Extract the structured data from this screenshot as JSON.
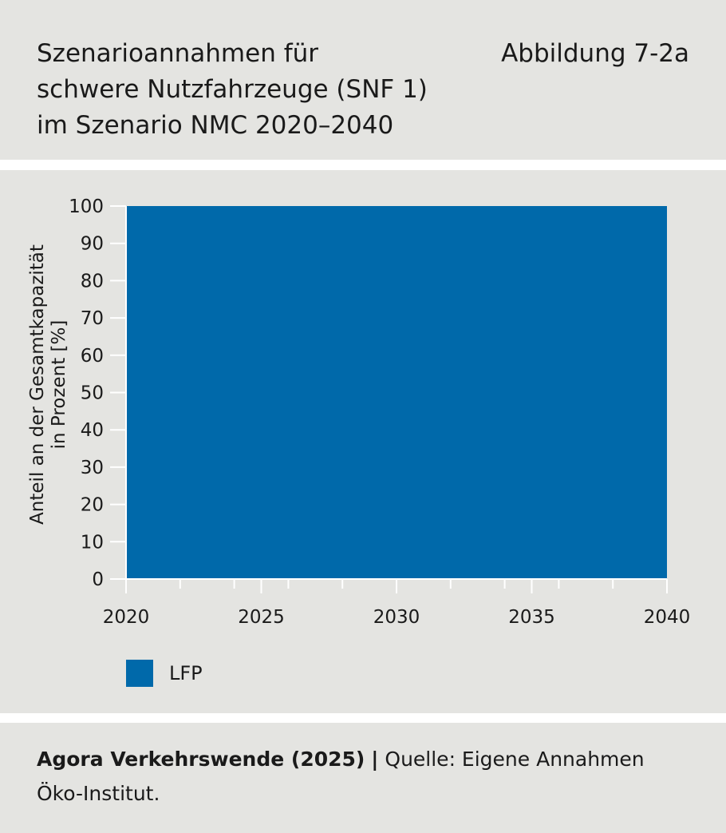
{
  "header": {
    "title_lines": [
      "Szenarioannahmen für",
      "schwere Nutzfahrzeuge (SNF 1)",
      "im Szenario NMC 2020–2040"
    ],
    "figure_label": "Abbildung 7-2a"
  },
  "colors": {
    "panel_background": "#e4e4e1",
    "lfp": "#0069aa"
  },
  "chart_data": {
    "type": "area",
    "title": "",
    "xlabel": "",
    "ylabel": "Anteil an der Gesamtkapazität in Prozent [%]",
    "ylabel_lines": [
      "Anteil an der Gesamtkapazität",
      "in Prozent [%]"
    ],
    "x": [
      2020,
      2040
    ],
    "xlim": [
      2020,
      2040
    ],
    "ylim": [
      0,
      100
    ],
    "x_ticks": [
      2020,
      2025,
      2030,
      2035,
      2040
    ],
    "y_ticks": [
      0,
      10,
      20,
      30,
      40,
      50,
      60,
      70,
      80,
      90,
      100
    ],
    "grid": false,
    "stacked": true,
    "series": [
      {
        "name": "LFP",
        "color": "#0069aa",
        "values": [
          100,
          100
        ]
      }
    ],
    "legend": {
      "position": "bottom-left",
      "entries": [
        "LFP"
      ]
    }
  },
  "footer": {
    "org": "Agora Verkehrswende (2025)",
    "separator": "|",
    "source_text": "Quelle: Eigene Annahmen",
    "source_line2": "Öko-Institut."
  }
}
